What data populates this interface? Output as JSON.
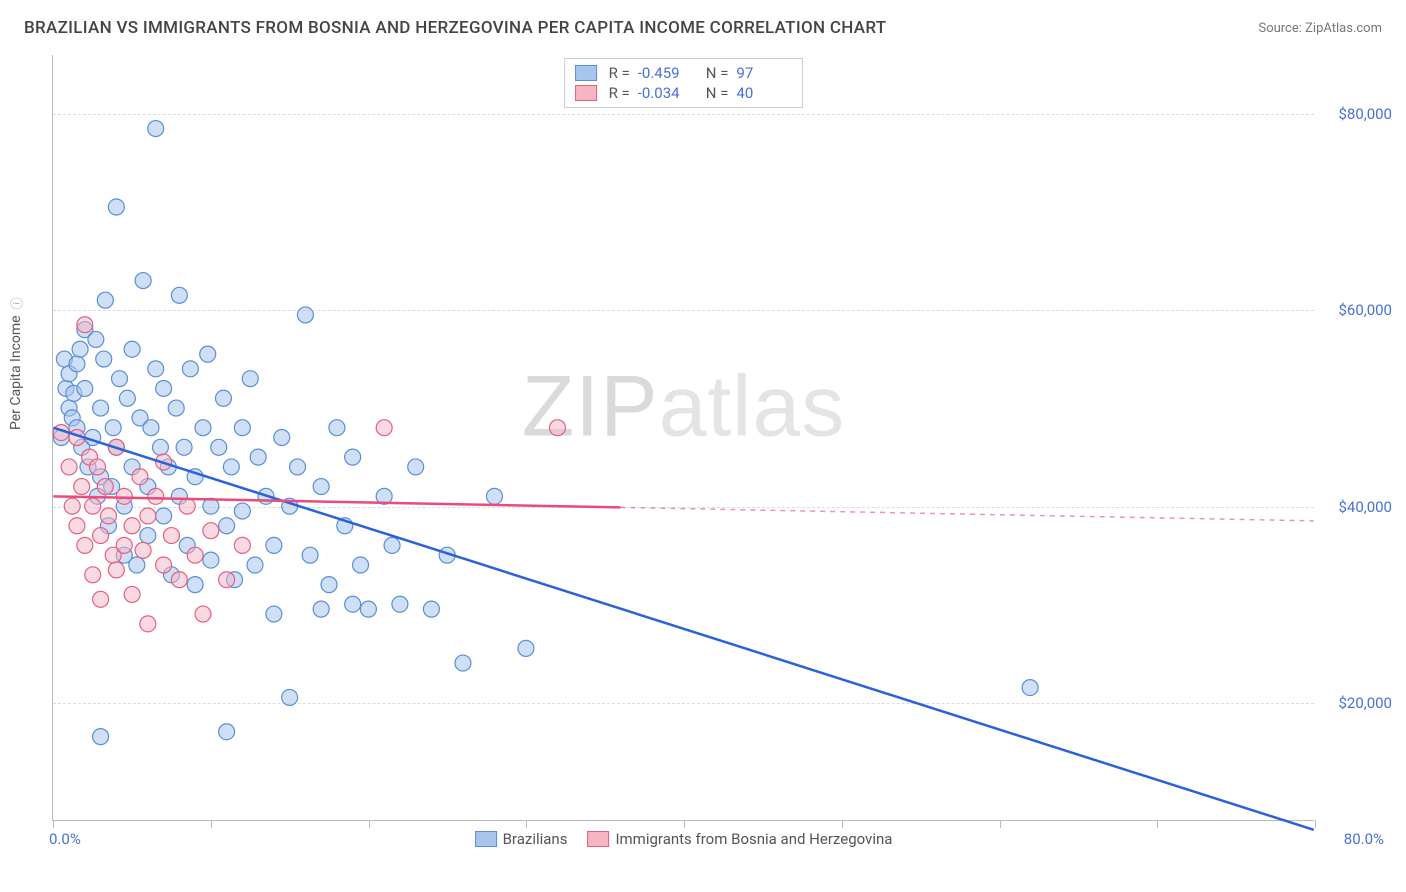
{
  "header": {
    "title": "BRAZILIAN VS IMMIGRANTS FROM BOSNIA AND HERZEGOVINA PER CAPITA INCOME CORRELATION CHART",
    "source": "Source: ZipAtlas.com"
  },
  "chart": {
    "type": "scatter",
    "ylabel": "Per Capita Income",
    "xlim": [
      0,
      80
    ],
    "ylim": [
      8000,
      86000
    ],
    "x_axis": {
      "ticks": [
        0,
        10,
        20,
        30,
        40,
        50,
        60,
        70,
        80
      ],
      "label_left": "0.0%",
      "label_right": "80.0%"
    },
    "y_axis": {
      "gridlines": [
        20000,
        40000,
        60000,
        80000
      ],
      "labels": [
        "$20,000",
        "$40,000",
        "$60,000",
        "$80,000"
      ]
    },
    "background_color": "#ffffff",
    "grid_color": "#dddddd",
    "axis_color": "#bbbbbb",
    "tick_label_color": "#4a6fd8",
    "marker_radius": 8,
    "marker_stroke_width": 1.2,
    "trendline_width": 2.5,
    "watermark": "ZIPatlas",
    "series": [
      {
        "name": "Brazilians",
        "color_fill": "#a8c5ed",
        "color_stroke": "#5a8fd6",
        "fill_opacity": 0.55,
        "trendline": {
          "x1": 0,
          "y1": 48000,
          "x2": 80,
          "y2": 7000,
          "color": "#2962d9",
          "dash_after_x": null
        },
        "stats": {
          "R": "-0.459",
          "N": "97"
        },
        "points": [
          [
            0.5,
            47000
          ],
          [
            0.7,
            55000
          ],
          [
            0.8,
            52000
          ],
          [
            1.0,
            53500
          ],
          [
            1.0,
            50000
          ],
          [
            1.2,
            49000
          ],
          [
            1.3,
            51500
          ],
          [
            1.5,
            48000
          ],
          [
            1.5,
            54500
          ],
          [
            1.7,
            56000
          ],
          [
            1.8,
            46000
          ],
          [
            2.0,
            52000
          ],
          [
            2.0,
            58000
          ],
          [
            2.2,
            44000
          ],
          [
            2.5,
            47000
          ],
          [
            2.7,
            57000
          ],
          [
            2.8,
            41000
          ],
          [
            3.0,
            50000
          ],
          [
            3.0,
            43000
          ],
          [
            3.2,
            55000
          ],
          [
            3.3,
            61000
          ],
          [
            3.5,
            38000
          ],
          [
            3.7,
            42000
          ],
          [
            3.8,
            48000
          ],
          [
            4.0,
            70500
          ],
          [
            4.0,
            46000
          ],
          [
            4.2,
            53000
          ],
          [
            4.5,
            40000
          ],
          [
            4.5,
            35000
          ],
          [
            4.7,
            51000
          ],
          [
            5.0,
            56000
          ],
          [
            5.0,
            44000
          ],
          [
            5.3,
            34000
          ],
          [
            5.5,
            49000
          ],
          [
            5.7,
            63000
          ],
          [
            6.0,
            42000
          ],
          [
            6.0,
            37000
          ],
          [
            6.2,
            48000
          ],
          [
            6.5,
            54000
          ],
          [
            6.5,
            78500
          ],
          [
            6.8,
            46000
          ],
          [
            7.0,
            39000
          ],
          [
            7.0,
            52000
          ],
          [
            7.3,
            44000
          ],
          [
            7.5,
            33000
          ],
          [
            7.8,
            50000
          ],
          [
            8.0,
            41000
          ],
          [
            8.0,
            61500
          ],
          [
            8.3,
            46000
          ],
          [
            8.5,
            36000
          ],
          [
            8.7,
            54000
          ],
          [
            9.0,
            43000
          ],
          [
            9.0,
            32000
          ],
          [
            9.5,
            48000
          ],
          [
            9.8,
            55500
          ],
          [
            10.0,
            40000
          ],
          [
            10.0,
            34500
          ],
          [
            10.5,
            46000
          ],
          [
            10.8,
            51000
          ],
          [
            11.0,
            38000
          ],
          [
            11.0,
            17000
          ],
          [
            11.3,
            44000
          ],
          [
            11.5,
            32500
          ],
          [
            12.0,
            48000
          ],
          [
            12.0,
            39500
          ],
          [
            12.5,
            53000
          ],
          [
            12.8,
            34000
          ],
          [
            13.0,
            45000
          ],
          [
            13.5,
            41000
          ],
          [
            14.0,
            36000
          ],
          [
            14.0,
            29000
          ],
          [
            14.5,
            47000
          ],
          [
            15.0,
            40000
          ],
          [
            15.0,
            20500
          ],
          [
            15.5,
            44000
          ],
          [
            16.0,
            59500
          ],
          [
            16.3,
            35000
          ],
          [
            17.0,
            42000
          ],
          [
            17.0,
            29500
          ],
          [
            17.5,
            32000
          ],
          [
            18.0,
            48000
          ],
          [
            18.5,
            38000
          ],
          [
            19.0,
            30000
          ],
          [
            19.0,
            45000
          ],
          [
            19.5,
            34000
          ],
          [
            20.0,
            29500
          ],
          [
            21.0,
            41000
          ],
          [
            21.5,
            36000
          ],
          [
            22.0,
            30000
          ],
          [
            23.0,
            44000
          ],
          [
            24.0,
            29500
          ],
          [
            25.0,
            35000
          ],
          [
            26.0,
            24000
          ],
          [
            28.0,
            41000
          ],
          [
            30.0,
            25500
          ],
          [
            62.0,
            21500
          ],
          [
            3.0,
            16500
          ]
        ]
      },
      {
        "name": "Immigrants from Bosnia and Herzegovina",
        "color_fill": "#f5b5c5",
        "color_stroke": "#e6607f",
        "fill_opacity": 0.5,
        "trendline": {
          "x1": 0,
          "y1": 41000,
          "x2": 80,
          "y2": 38500,
          "color": "#e94b7a",
          "dash_after_x": 36
        },
        "stats": {
          "R": "-0.034",
          "N": "40"
        },
        "points": [
          [
            0.5,
            47500
          ],
          [
            1.0,
            44000
          ],
          [
            1.2,
            40000
          ],
          [
            1.5,
            47000
          ],
          [
            1.5,
            38000
          ],
          [
            1.8,
            42000
          ],
          [
            2.0,
            58500
          ],
          [
            2.0,
            36000
          ],
          [
            2.3,
            45000
          ],
          [
            2.5,
            40000
          ],
          [
            2.5,
            33000
          ],
          [
            2.8,
            44000
          ],
          [
            3.0,
            37000
          ],
          [
            3.0,
            30500
          ],
          [
            3.3,
            42000
          ],
          [
            3.5,
            39000
          ],
          [
            3.8,
            35000
          ],
          [
            4.0,
            46000
          ],
          [
            4.0,
            33500
          ],
          [
            4.5,
            41000
          ],
          [
            4.5,
            36000
          ],
          [
            5.0,
            38000
          ],
          [
            5.0,
            31000
          ],
          [
            5.5,
            43000
          ],
          [
            5.7,
            35500
          ],
          [
            6.0,
            39000
          ],
          [
            6.0,
            28000
          ],
          [
            6.5,
            41000
          ],
          [
            7.0,
            34000
          ],
          [
            7.0,
            44500
          ],
          [
            7.5,
            37000
          ],
          [
            8.0,
            32500
          ],
          [
            8.5,
            40000
          ],
          [
            9.0,
            35000
          ],
          [
            9.5,
            29000
          ],
          [
            10.0,
            37500
          ],
          [
            11.0,
            32500
          ],
          [
            12.0,
            36000
          ],
          [
            21.0,
            48000
          ],
          [
            32.0,
            48000
          ]
        ]
      }
    ]
  },
  "legend": {
    "items": [
      {
        "label": "Brazilians",
        "fill": "#a8c5ed",
        "stroke": "#5a8fd6"
      },
      {
        "label": "Immigrants from Bosnia and Herzegovina",
        "fill": "#f5b5c5",
        "stroke": "#e6607f"
      }
    ]
  }
}
